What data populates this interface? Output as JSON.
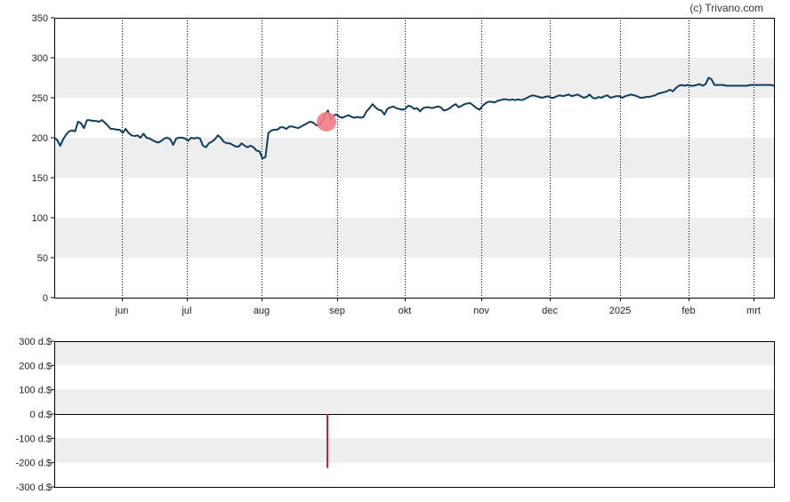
{
  "credit": "(c) Trivano.com",
  "colors": {
    "line": "#0f3d5c",
    "band": "#eeeeee",
    "marker": "#f27c84",
    "volume_bar": "#cc1f2f",
    "axis": "#000000",
    "grid": "#000000"
  },
  "chart_data": [
    {
      "type": "line",
      "ylim": [
        0,
        350
      ],
      "yticks": [
        "0",
        "50",
        "100",
        "150",
        "200",
        "250",
        "300",
        "350"
      ],
      "month_labels": [
        "jun",
        "jul",
        "aug",
        "sep",
        "okt",
        "nov",
        "dec",
        "2025",
        "feb",
        "mrt"
      ],
      "series": [
        {
          "values": [
            200,
            197,
            190,
            198,
            204,
            208,
            209,
            208,
            220,
            218,
            212,
            222,
            222,
            221,
            221,
            220,
            222,
            219,
            215,
            211,
            211,
            210,
            210,
            206,
            211,
            206,
            203,
            202,
            203,
            200,
            205,
            200,
            199,
            197,
            195,
            194,
            196,
            199,
            200,
            198,
            191,
            199,
            200,
            200,
            199,
            196,
            200,
            199,
            200,
            199,
            190,
            188,
            193,
            195,
            198,
            203,
            200,
            195,
            193,
            193,
            191,
            189,
            189,
            193,
            190,
            188,
            190,
            188,
            184,
            183,
            174,
            176,
            206,
            209,
            210,
            210,
            213,
            213,
            211,
            214,
            214,
            213,
            212,
            214,
            216,
            218,
            220,
            219,
            216,
            215,
            220,
            228,
            234,
            223,
            228,
            229,
            226,
            225,
            227,
            228,
            226,
            225,
            226,
            225,
            226,
            233,
            237,
            242,
            238,
            235,
            234,
            229,
            236,
            238,
            239,
            237,
            236,
            235,
            236,
            240,
            239,
            236,
            237,
            233,
            237,
            238,
            238,
            237,
            238,
            239,
            238,
            234,
            235,
            237,
            240,
            242,
            238,
            240,
            242,
            243,
            243,
            240,
            237,
            235,
            240,
            243,
            245,
            245,
            244,
            246,
            247,
            248,
            248,
            247,
            248,
            247,
            248,
            247,
            248,
            250,
            252,
            253,
            252,
            251,
            250,
            251,
            252,
            250,
            250,
            252,
            253,
            252,
            253,
            254,
            252,
            253,
            254,
            252,
            250,
            251,
            254,
            250,
            249,
            251,
            250,
            252,
            253,
            250,
            251,
            252,
            252,
            250,
            252,
            253,
            254,
            253,
            252,
            250,
            250,
            251,
            251,
            252,
            253,
            255,
            256,
            257,
            258,
            260,
            258,
            262,
            265,
            266,
            265,
            266,
            265,
            265,
            266,
            267,
            265,
            267,
            275,
            273,
            266,
            266,
            266,
            266,
            265,
            265,
            265,
            265,
            265,
            265,
            265,
            265,
            266,
            266,
            266,
            266,
            266,
            266,
            266,
            266,
            265
          ]
        }
      ],
      "marker": {
        "x_month": "sep",
        "y": 220
      }
    },
    {
      "type": "bar",
      "ylim": [
        -300,
        300
      ],
      "yticks": [
        "300 d.$",
        "200 d.$",
        "100 d.$",
        "0 d.$",
        "-100 d.$",
        "-200 d.$",
        "-300 d.$"
      ],
      "bars": [
        {
          "value": -222
        }
      ]
    }
  ]
}
